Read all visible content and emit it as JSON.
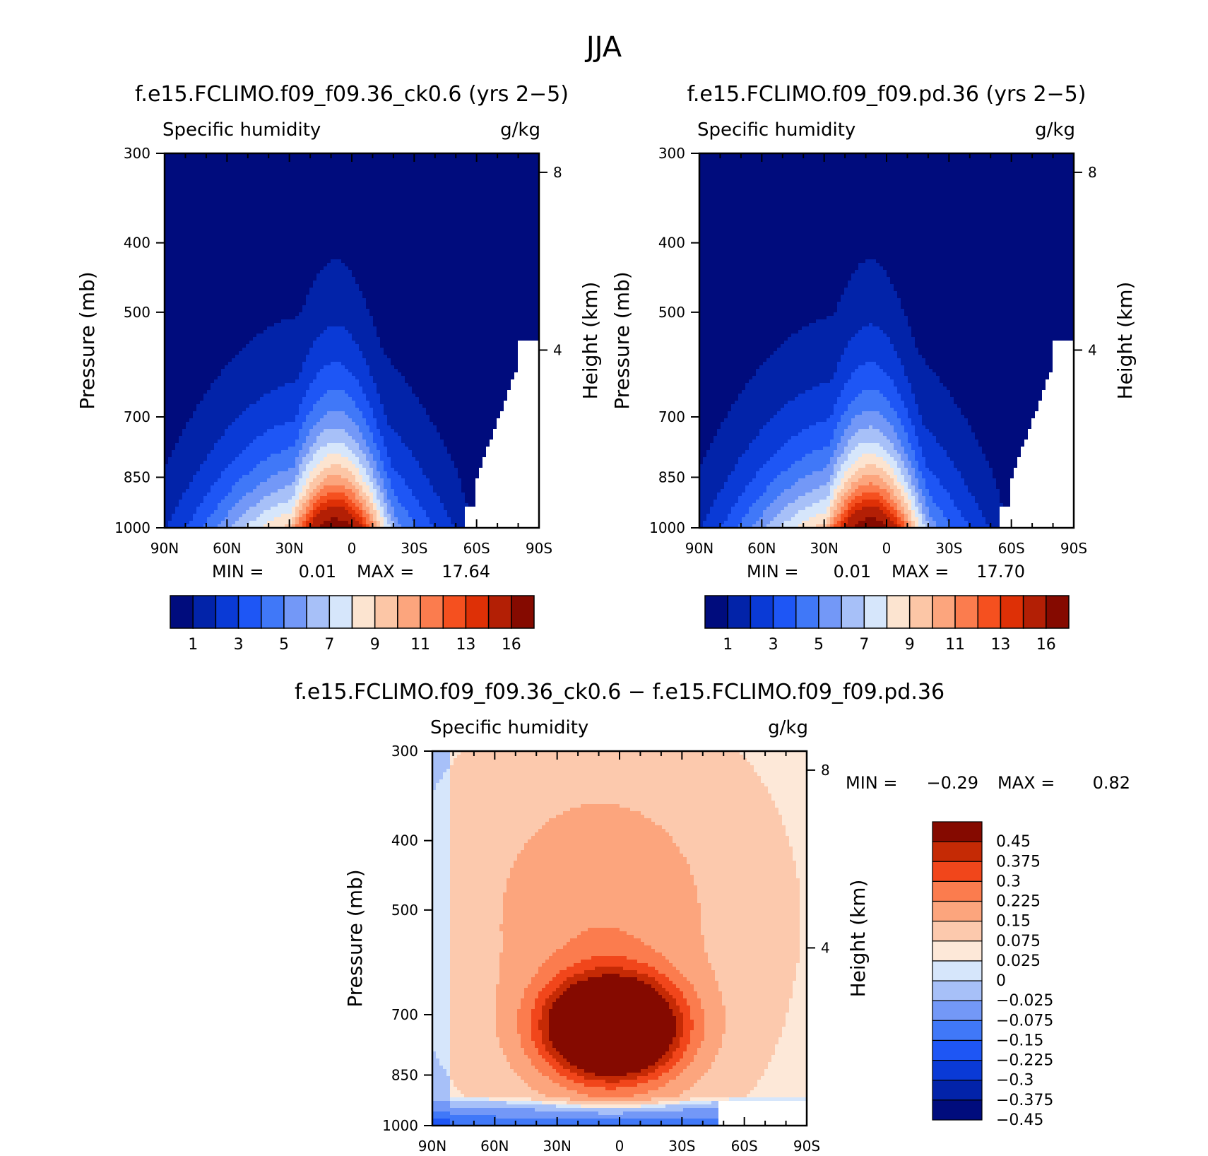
{
  "figure_title": "JJA",
  "colors": {
    "abs_scale": [
      "#000c7d",
      "#0223a9",
      "#0a3ad6",
      "#1e56f5",
      "#4078f8",
      "#7398f7",
      "#a7c0f8",
      "#d6e6fb",
      "#fce4d0",
      "#fcc6a6",
      "#fca57d",
      "#fb7c4e",
      "#f5501f",
      "#de3006",
      "#b31f05",
      "#850a00"
    ],
    "diff_scale": [
      "#000c7d",
      "#0223a9",
      "#0a3ad6",
      "#1e56f5",
      "#4078f8",
      "#7398f7",
      "#a7c0f8",
      "#d6e6fb",
      "#fde8d8",
      "#fcc9ad",
      "#fca57d",
      "#fb7c4e",
      "#f1461b",
      "#c52a05",
      "#850a00"
    ]
  },
  "chart_data": [
    {
      "type": "heatmap",
      "panel": "top-left",
      "title": "f.e15.FCLIMO.f09_f09.36_ck0.6 (yrs 2−5)",
      "variable": "Specific humidity",
      "units": "g/kg",
      "ylabel": "Pressure (mb)",
      "y2label": "Height (km)",
      "x_ticks": [
        "90N",
        "60N",
        "30N",
        "0",
        "30S",
        "60S",
        "90S"
      ],
      "y_ticks": [
        "300",
        "400",
        "500",
        "700",
        "850",
        "1000"
      ],
      "y2_ticks": [
        "8",
        "4"
      ],
      "ylim": [
        1000,
        300
      ],
      "xlim": [
        "90N",
        "90S"
      ],
      "min_label": "MIN =",
      "min": "0.01",
      "max_label": "MAX =",
      "max": "17.64",
      "levels": [
        1,
        2,
        3,
        4,
        5,
        6,
        7,
        8,
        9,
        10,
        11,
        12,
        13,
        14,
        16
      ],
      "colorbar_labels": [
        "1",
        "3",
        "5",
        "7",
        "9",
        "11",
        "13",
        "16"
      ]
    },
    {
      "type": "heatmap",
      "panel": "top-right",
      "title": "f.e15.FCLIMO.f09_f09.pd.36 (yrs 2−5)",
      "variable": "Specific humidity",
      "units": "g/kg",
      "ylabel": "Pressure (mb)",
      "y2label": "Height (km)",
      "x_ticks": [
        "90N",
        "60N",
        "30N",
        "0",
        "30S",
        "60S",
        "90S"
      ],
      "y_ticks": [
        "300",
        "400",
        "500",
        "700",
        "850",
        "1000"
      ],
      "y2_ticks": [
        "8",
        "4"
      ],
      "ylim": [
        1000,
        300
      ],
      "xlim": [
        "90N",
        "90S"
      ],
      "min_label": "MIN =",
      "min": "0.01",
      "max_label": "MAX =",
      "max": "17.70",
      "levels": [
        1,
        2,
        3,
        4,
        5,
        6,
        7,
        8,
        9,
        10,
        11,
        12,
        13,
        14,
        16
      ],
      "colorbar_labels": [
        "1",
        "3",
        "5",
        "7",
        "9",
        "11",
        "13",
        "16"
      ]
    },
    {
      "type": "heatmap",
      "panel": "bottom",
      "title": "f.e15.FCLIMO.f09_f09.36_ck0.6 − f.e15.FCLIMO.f09_f09.pd.36",
      "variable": "Specific humidity",
      "units": "g/kg",
      "ylabel": "Pressure (mb)",
      "y2label": "Height (km)",
      "x_ticks": [
        "90N",
        "60N",
        "30N",
        "0",
        "30S",
        "60S",
        "90S"
      ],
      "y_ticks": [
        "300",
        "400",
        "500",
        "700",
        "850",
        "1000"
      ],
      "y2_ticks": [
        "8",
        "4"
      ],
      "ylim": [
        1000,
        300
      ],
      "xlim": [
        "90N",
        "90S"
      ],
      "min_label": "MIN =",
      "min": "−0.29",
      "max_label": "MAX =",
      "max": "0.82",
      "colorbar_labels": [
        "0.45",
        "0.375",
        "0.3",
        "0.225",
        "0.15",
        "0.075",
        "0.025",
        "0",
        "−0.025",
        "−0.075",
        "−0.15",
        "−0.225",
        "−0.3",
        "−0.375",
        "−0.45"
      ]
    }
  ]
}
